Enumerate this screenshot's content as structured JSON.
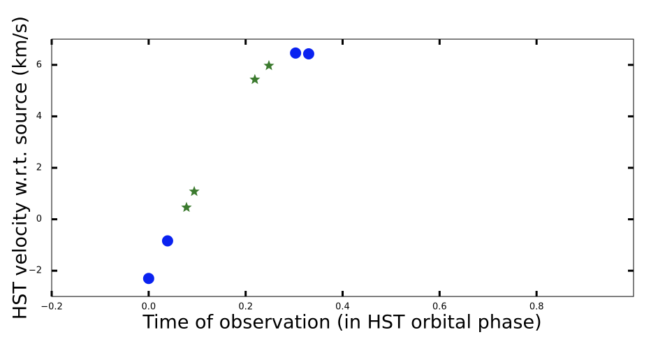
{
  "chart_data": {
    "type": "scatter",
    "x_label": "Time of observation (in HST orbital phase)",
    "y_label": "HST velocity w.r.t. source (km/s)",
    "xlim": [
      -0.2,
      1.0
    ],
    "ylim": [
      -3,
      7
    ],
    "xticks": [
      {
        "value": -0.2,
        "label": "−0.2"
      },
      {
        "value": 0.0,
        "label": "0.0"
      },
      0.2,
      0.4,
      0.6,
      0.8
    ],
    "yticks": [
      {
        "value": -2,
        "label": "−2"
      },
      0,
      2,
      4,
      6
    ],
    "grid": false,
    "series": [
      {
        "color": "#0a22f0",
        "marker": "circle",
        "x": [
          0.0,
          0.039,
          0.303,
          0.33
        ],
        "values": [
          -2.3,
          -0.84,
          6.46,
          6.43
        ]
      },
      {
        "color": "#3b7a2e",
        "marker": "star",
        "x": [
          0.078,
          0.094,
          0.219,
          0.248
        ],
        "values": [
          0.46,
          1.08,
          5.43,
          5.97
        ]
      }
    ]
  }
}
